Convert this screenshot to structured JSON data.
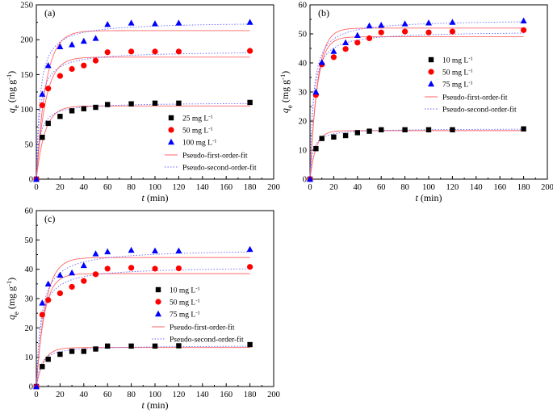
{
  "colors": {
    "series_10": "#000000",
    "series_50": "#ff0000",
    "series_75": "#0000ff",
    "pfo_line": "#ff6666",
    "pso_line": "#6666ff"
  },
  "chart_data": [
    {
      "type": "scatter",
      "panel_label": "(a)",
      "xlabel": "t (min)",
      "ylabel": "qe (mg g-1)",
      "xlim": [
        0,
        200
      ],
      "ylim": [
        0,
        250
      ],
      "xticks": [
        0,
        20,
        40,
        60,
        80,
        100,
        120,
        140,
        160,
        180,
        200
      ],
      "yticks": [
        0,
        50,
        100,
        150,
        200,
        250
      ],
      "legend_position": "right-middle",
      "series": [
        {
          "name": "25 mg L-1",
          "marker": "square",
          "color": "#000000",
          "x": [
            0,
            5,
            10,
            20,
            30,
            40,
            50,
            60,
            80,
            100,
            120,
            180
          ],
          "y": [
            0,
            60,
            80,
            90,
            98,
            101,
            103,
            107,
            108,
            109,
            109,
            110
          ]
        },
        {
          "name": "50 mg L-1",
          "marker": "circle",
          "color": "#ff0000",
          "x": [
            0,
            5,
            10,
            20,
            30,
            40,
            50,
            60,
            80,
            100,
            120,
            180
          ],
          "y": [
            0,
            106,
            130,
            148,
            158,
            163,
            170,
            182,
            183,
            183,
            183,
            184
          ]
        },
        {
          "name": "100 mg L-1",
          "marker": "triangle",
          "color": "#0000ff",
          "x": [
            0,
            5,
            10,
            20,
            30,
            40,
            50,
            60,
            80,
            100,
            120,
            180
          ],
          "y": [
            0,
            122,
            163,
            190,
            193,
            198,
            202,
            222,
            224,
            223,
            224,
            225
          ]
        }
      ],
      "fits": [
        {
          "name": "Pseudo-first-order-fit",
          "style": "solid",
          "color": "#ff6666",
          "curves": [
            {
              "qe": 105,
              "k": 0.14
            },
            {
              "qe": 175,
              "k": 0.13
            },
            {
              "qe": 213,
              "k": 0.125
            }
          ]
        },
        {
          "name": "Pseudo-second-order-fit",
          "style": "dotted",
          "color": "#6666ff",
          "curves": [
            {
              "qe": 110,
              "k1": 0.0035
            },
            {
              "qe": 184,
              "k1": 0.0019
            },
            {
              "qe": 226,
              "k1": 0.0015
            }
          ]
        }
      ],
      "legend": [
        "25 mg L-1",
        "50 mg L-1",
        "100 mg L-1",
        "Pseudo-first-order-fit",
        "Pseudo-second-order-fit"
      ]
    },
    {
      "type": "scatter",
      "panel_label": "(b)",
      "xlabel": "t (min)",
      "ylabel": "qe (mg g-1)",
      "xlim": [
        0,
        200
      ],
      "ylim": [
        0,
        60
      ],
      "xticks": [
        0,
        20,
        40,
        60,
        80,
        100,
        120,
        140,
        160,
        180,
        200
      ],
      "yticks": [
        0,
        10,
        20,
        30,
        40,
        50,
        60
      ],
      "legend_position": "right-middle",
      "series": [
        {
          "name": "10 mg L-1",
          "marker": "square",
          "color": "#000000",
          "x": [
            0,
            5,
            10,
            20,
            30,
            40,
            50,
            60,
            80,
            100,
            120,
            180
          ],
          "y": [
            0,
            10.5,
            14.0,
            14.5,
            15.0,
            16.0,
            16.5,
            17.0,
            17.0,
            17.0,
            17.0,
            17.3
          ]
        },
        {
          "name": "50 mg L-1",
          "marker": "circle",
          "color": "#ff0000",
          "x": [
            0,
            5,
            10,
            20,
            30,
            40,
            50,
            60,
            80,
            100,
            120,
            180
          ],
          "y": [
            0,
            29.0,
            39.5,
            42.0,
            44.8,
            47.0,
            48.5,
            50.5,
            50.8,
            50.5,
            50.8,
            51.3
          ]
        },
        {
          "name": "75 mg L-1",
          "marker": "triangle",
          "color": "#0000ff",
          "x": [
            0,
            5,
            10,
            20,
            30,
            40,
            50,
            60,
            80,
            100,
            120,
            180
          ],
          "y": [
            0,
            30.0,
            40.2,
            44.0,
            47.0,
            49.5,
            52.8,
            53.0,
            53.5,
            53.8,
            54.0,
            54.5
          ]
        }
      ],
      "fits": [
        {
          "name": "Pseudo-first-order-fit",
          "style": "solid",
          "color": "#ff6666",
          "curves": [
            {
              "qe": 16.7,
              "k": 0.2
            },
            {
              "qe": 49.0,
              "k": 0.17
            },
            {
              "qe": 52.0,
              "k": 0.16
            }
          ]
        },
        {
          "name": "Pseudo-second-order-fit",
          "style": "dotted",
          "color": "#6666ff",
          "curves": [
            {
              "qe": 17.4,
              "k1": 0.025
            },
            {
              "qe": 51.0,
              "k1": 0.0075
            },
            {
              "qe": 55.0,
              "k1": 0.0065
            }
          ]
        }
      ],
      "legend": [
        "10 mg L-1",
        "50 mg L-1",
        "75 mg L-1",
        "Pseudo-first-order-fit",
        "Pseudo-second-order-fit"
      ]
    },
    {
      "type": "scatter",
      "panel_label": "(c)",
      "xlabel": "t (min)",
      "ylabel": "qe (mg g-1)",
      "xlim": [
        0,
        200
      ],
      "ylim": [
        0,
        60
      ],
      "xticks": [
        0,
        20,
        40,
        60,
        80,
        100,
        120,
        140,
        160,
        180,
        200
      ],
      "yticks": [
        0,
        10,
        20,
        30,
        40,
        50,
        60
      ],
      "legend_position": "right-middle",
      "series": [
        {
          "name": "10 mg L-1",
          "marker": "square",
          "color": "#000000",
          "x": [
            0,
            5,
            10,
            20,
            30,
            40,
            50,
            60,
            80,
            100,
            120,
            180
          ],
          "y": [
            0,
            6.8,
            9.3,
            11.0,
            12.0,
            12.0,
            12.8,
            13.8,
            13.8,
            13.8,
            13.9,
            14.3
          ]
        },
        {
          "name": "50 mg L-1",
          "marker": "circle",
          "color": "#ff0000",
          "x": [
            0,
            5,
            10,
            20,
            30,
            40,
            50,
            60,
            80,
            100,
            120,
            180
          ],
          "y": [
            0,
            24.5,
            29.5,
            31.8,
            34.0,
            36.0,
            38.3,
            40.2,
            40.5,
            40.2,
            40.3,
            40.8
          ]
        },
        {
          "name": "75 mg L-1",
          "marker": "triangle",
          "color": "#0000ff",
          "x": [
            0,
            5,
            10,
            20,
            30,
            40,
            50,
            60,
            80,
            100,
            120,
            180
          ],
          "y": [
            0,
            28.5,
            35.0,
            38.0,
            38.8,
            41.3,
            45.3,
            46.0,
            46.5,
            46.3,
            46.3,
            46.8
          ]
        }
      ],
      "fits": [
        {
          "name": "Pseudo-first-order-fit",
          "style": "solid",
          "color": "#ff6666",
          "curves": [
            {
              "qe": 13.3,
              "k": 0.16
            },
            {
              "qe": 38.5,
              "k": 0.15
            },
            {
              "qe": 44.0,
              "k": 0.13
            }
          ]
        },
        {
          "name": "Pseudo-second-order-fit",
          "style": "dotted",
          "color": "#6666ff",
          "curves": [
            {
              "qe": 14.0,
              "k1": 0.02
            },
            {
              "qe": 41.0,
              "k1": 0.0065
            },
            {
              "qe": 47.0,
              "k1": 0.005
            }
          ]
        }
      ],
      "legend": [
        "10 mg L-1",
        "50 mg L-1",
        "75 mg L-1",
        "Pseudo-first-order-fit",
        "Pseudo-second-order-fit"
      ]
    }
  ]
}
